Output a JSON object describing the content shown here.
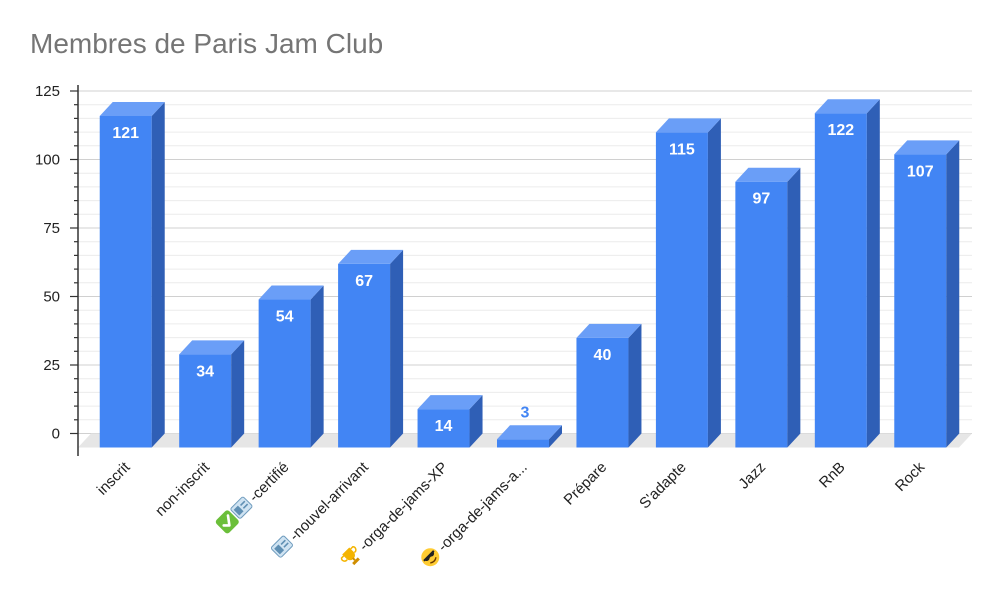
{
  "chart_data": {
    "type": "bar",
    "title": "Membres de Paris Jam Club",
    "xlabel": "",
    "ylabel": "",
    "ylim": [
      0,
      125
    ],
    "yticks": [
      0,
      25,
      50,
      75,
      100,
      125
    ],
    "grid": true,
    "legend": "none",
    "three_d": true,
    "categories": [
      {
        "label": "inscrit"
      },
      {
        "label": "non-inscrit"
      },
      {
        "label": "-certifié",
        "icons": [
          "check-icon",
          "badge-icon"
        ]
      },
      {
        "label": "-nouvel-arrivant",
        "icons": [
          "badge-icon"
        ]
      },
      {
        "label": "-orga-de-jams-XP",
        "icons": [
          "trophy-icon"
        ]
      },
      {
        "label": "-orga-de-jams-a...",
        "icons": [
          "sunglasses-icon"
        ]
      },
      {
        "label": "Prépare"
      },
      {
        "label": "S'adapte"
      },
      {
        "label": "Jazz"
      },
      {
        "label": "RnB"
      },
      {
        "label": "Rock"
      }
    ],
    "series": [
      {
        "values": [
          121,
          34,
          54,
          67,
          14,
          3,
          40,
          115,
          97,
          122,
          107
        ]
      }
    ],
    "colors": {
      "front": "#4285f4",
      "side": "#2f5fb6",
      "top": "#6a9ef7",
      "floor": "#e6e6e6",
      "grid": "#dddddd"
    }
  }
}
